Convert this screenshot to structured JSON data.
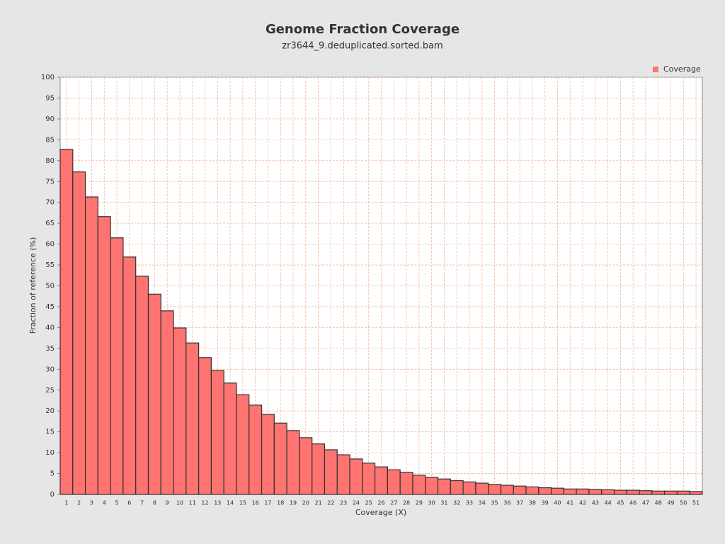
{
  "chart_data": {
    "type": "bar",
    "title": "Genome Fraction Coverage",
    "subtitle": "zr3644_9.deduplicated.sorted.bam",
    "x_label": "Coverage (X)",
    "y_label": "Fraction of reference (%)",
    "categories": [
      1,
      2,
      3,
      4,
      5,
      6,
      7,
      8,
      9,
      10,
      11,
      12,
      13,
      14,
      15,
      16,
      17,
      18,
      19,
      20,
      21,
      22,
      23,
      24,
      25,
      26,
      27,
      28,
      29,
      30,
      31,
      32,
      33,
      34,
      35,
      36,
      37,
      38,
      39,
      40,
      41,
      42,
      43,
      44,
      45,
      46,
      47,
      48,
      49,
      50,
      51
    ],
    "series": [
      {
        "name": "Coverage",
        "color": "#ff7370",
        "values": [
          82.7,
          77.3,
          71.3,
          66.6,
          61.5,
          56.9,
          52.3,
          48.0,
          44.0,
          39.9,
          36.3,
          32.8,
          29.7,
          26.7,
          23.9,
          21.4,
          19.2,
          17.1,
          15.3,
          13.6,
          12.1,
          10.7,
          9.5,
          8.5,
          7.5,
          6.6,
          5.9,
          5.3,
          4.6,
          4.1,
          3.7,
          3.3,
          3.0,
          2.7,
          2.4,
          2.2,
          2.0,
          1.8,
          1.6,
          1.5,
          1.3,
          1.3,
          1.2,
          1.1,
          1.0,
          1.0,
          0.9,
          0.8,
          0.8,
          0.8,
          0.7
        ]
      }
    ],
    "ylim": [
      0,
      100
    ],
    "yticks": [
      0,
      5,
      10,
      15,
      20,
      25,
      30,
      35,
      40,
      45,
      50,
      55,
      60,
      65,
      70,
      75,
      80,
      85,
      90,
      95,
      100
    ],
    "grid": true,
    "legend": "top-right"
  }
}
